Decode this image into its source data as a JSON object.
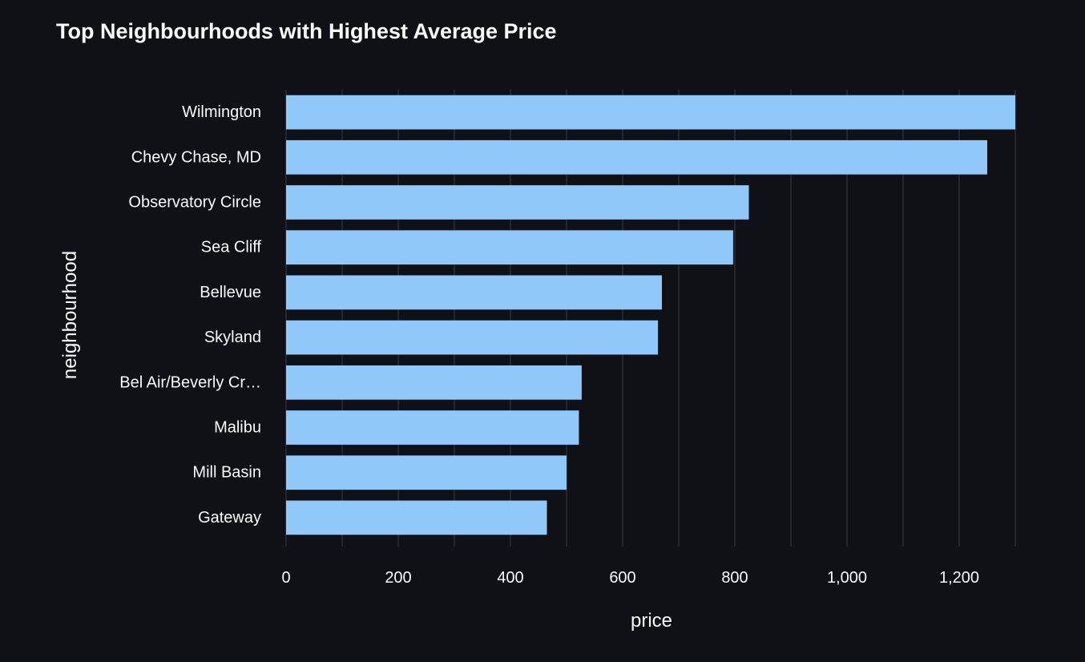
{
  "chart_data": {
    "type": "bar",
    "orientation": "horizontal",
    "title": "Top Neighbourhoods with Highest Average Price",
    "xlabel": "price",
    "ylabel": "neighbourhood",
    "categories": [
      "Wilmington",
      "Chevy Chase, MD",
      "Observatory Circle",
      "Sea Cliff",
      "Bellevue",
      "Skyland",
      "Bel Air/Beverly Cr…",
      "Malibu",
      "Mill Basin",
      "Gateway"
    ],
    "values": [
      1300,
      1250,
      825,
      797,
      670,
      663,
      527,
      522,
      500,
      465
    ],
    "xlim": [
      0,
      1300
    ],
    "xticks": [
      0,
      200,
      400,
      600,
      800,
      1000,
      1200
    ],
    "xtick_labels": [
      "0",
      "200",
      "400",
      "600",
      "800",
      "1,000",
      "1,200"
    ],
    "grid": "vertical",
    "bar_color": "#90c8fa",
    "background_color": "#0f1117",
    "grid_color": "#3a3d45",
    "text_color": "#fafafa"
  }
}
